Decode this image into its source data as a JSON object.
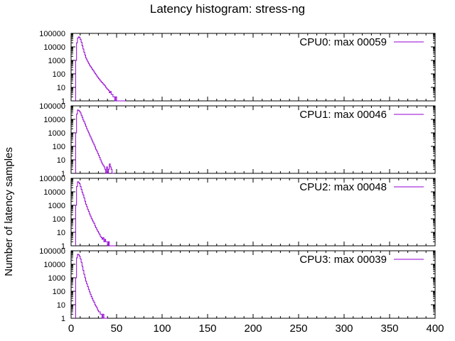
{
  "chart_data": {
    "type": "line",
    "title": "Latency histogram:  stress-ng",
    "ylabel": "Number of latency samples",
    "xlabel": "",
    "xlim": [
      0,
      400
    ],
    "ylim": [
      1,
      100000
    ],
    "yscale": "log",
    "x_ticks": [
      "0",
      "50",
      "100",
      "150",
      "200",
      "250",
      "300",
      "350",
      "400"
    ],
    "y_ticks": [
      "1",
      "10",
      "100",
      "1000",
      "10000",
      "100000"
    ],
    "grid": false,
    "legend_position": "top-right",
    "line_color": "#9400d3",
    "series": [
      {
        "name": "CPU0: max 00059",
        "x": [
          5,
          6,
          7,
          8,
          9,
          10,
          11,
          12,
          13,
          14,
          15,
          16,
          17,
          18,
          19,
          20,
          21,
          22,
          23,
          24,
          25,
          26,
          27,
          28,
          29,
          30,
          31,
          32,
          33,
          34,
          35,
          36,
          37,
          38,
          39,
          40,
          41,
          42,
          43,
          44,
          45,
          46,
          47,
          48,
          49,
          50,
          52,
          54,
          59
        ],
        "y": [
          1000,
          20000,
          45000,
          55000,
          50000,
          35000,
          22000,
          12000,
          7000,
          4000,
          2500,
          1500,
          1100,
          800,
          600,
          450,
          350,
          280,
          220,
          180,
          140,
          110,
          90,
          70,
          55,
          45,
          38,
          30,
          25,
          22,
          18,
          15,
          13,
          10,
          8,
          7,
          6,
          4,
          5,
          3,
          3,
          2,
          2,
          1,
          2,
          1,
          1,
          1,
          1
        ]
      },
      {
        "name": "CPU1: max 00046",
        "x": [
          5,
          6,
          7,
          8,
          9,
          10,
          11,
          12,
          13,
          14,
          15,
          16,
          17,
          18,
          19,
          20,
          21,
          22,
          23,
          24,
          25,
          26,
          27,
          28,
          29,
          30,
          31,
          32,
          33,
          34,
          35,
          36,
          37,
          38,
          39,
          40,
          41,
          42,
          43,
          44,
          46
        ],
        "y": [
          1000,
          25000,
          50000,
          45000,
          40000,
          30000,
          20000,
          14000,
          9000,
          6500,
          4500,
          3000,
          2000,
          1400,
          1000,
          700,
          500,
          350,
          250,
          180,
          130,
          90,
          60,
          45,
          30,
          22,
          15,
          10,
          7,
          5,
          4,
          3,
          2,
          1,
          3,
          1,
          2,
          5,
          3,
          2,
          1
        ]
      },
      {
        "name": "CPU2: max 00048",
        "x": [
          5,
          6,
          7,
          8,
          9,
          10,
          11,
          12,
          13,
          14,
          15,
          16,
          17,
          18,
          19,
          20,
          21,
          22,
          23,
          24,
          25,
          26,
          27,
          28,
          29,
          30,
          31,
          32,
          33,
          34,
          35,
          36,
          37,
          38,
          39,
          40,
          41,
          42,
          44,
          46,
          48
        ],
        "y": [
          1000,
          25000,
          55000,
          50000,
          40000,
          25000,
          15000,
          9000,
          6000,
          3500,
          2000,
          1200,
          800,
          500,
          350,
          230,
          160,
          110,
          80,
          60,
          45,
          30,
          22,
          16,
          12,
          9,
          7,
          5,
          4,
          3,
          4,
          2,
          3,
          2,
          2,
          1,
          2,
          1,
          1,
          1,
          1
        ]
      },
      {
        "name": "CPU3: max 00039",
        "x": [
          5,
          6,
          7,
          8,
          9,
          10,
          11,
          12,
          13,
          14,
          15,
          16,
          17,
          18,
          19,
          20,
          21,
          22,
          23,
          24,
          25,
          26,
          27,
          28,
          29,
          30,
          31,
          32,
          33,
          34,
          35,
          36,
          37,
          39
        ],
        "y": [
          1000,
          30000,
          55000,
          50000,
          40000,
          25000,
          14000,
          7000,
          3500,
          1800,
          1000,
          550,
          350,
          220,
          140,
          90,
          60,
          40,
          28,
          20,
          15,
          10,
          8,
          6,
          4,
          3,
          3,
          2,
          2,
          1,
          2,
          1,
          1,
          1
        ]
      }
    ]
  }
}
